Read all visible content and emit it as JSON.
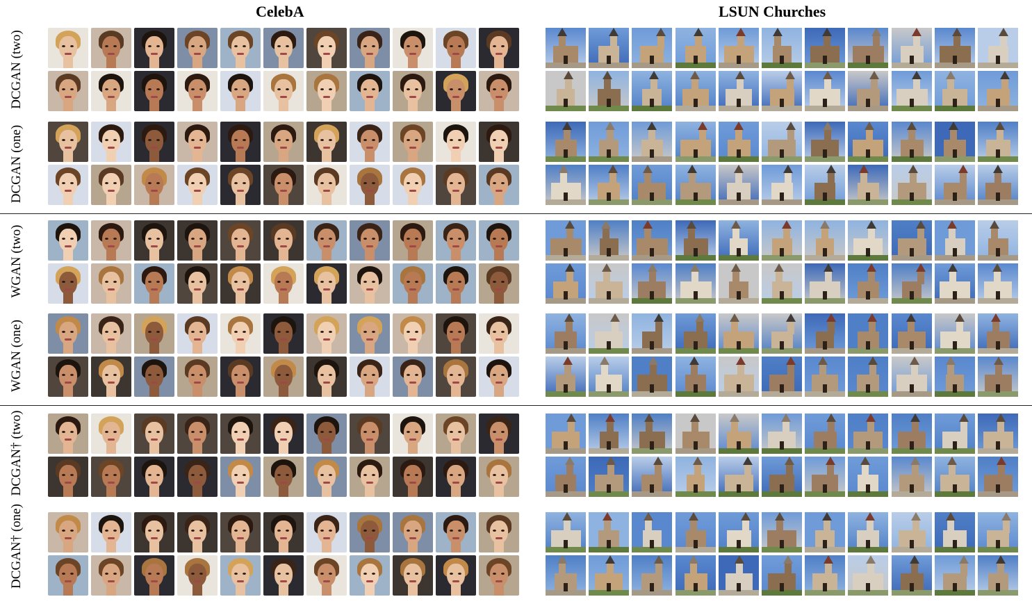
{
  "columns": {
    "left_title": "CelebA",
    "right_title": "LSUN Churches"
  },
  "row_labels": [
    "DCGAN (two)",
    "DCGAN (one)",
    "WGAN (two)",
    "WGAN (one)",
    "DCGAN† (two)",
    "DCGAN† (one)"
  ]
}
